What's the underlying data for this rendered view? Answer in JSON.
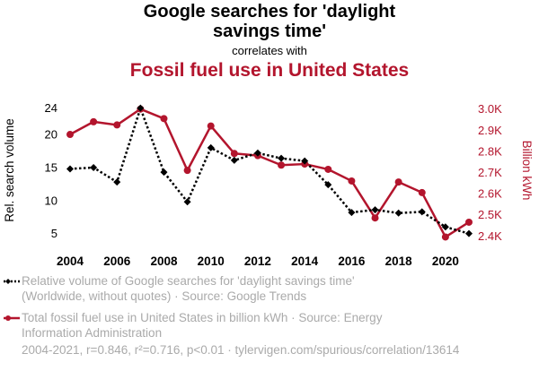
{
  "header": {
    "title_line1": "Google searches for 'daylight",
    "title_line2": "savings time'",
    "correlates": "correlates with",
    "subtitle": "Fossil fuel use in United States"
  },
  "colors": {
    "series1": "#000000",
    "series2": "#b3152d",
    "muted": "#aaaaaa"
  },
  "chart_data": {
    "type": "line",
    "x": [
      2004,
      2005,
      2006,
      2007,
      2008,
      2009,
      2010,
      2011,
      2012,
      2013,
      2014,
      2015,
      2016,
      2017,
      2018,
      2019,
      2020,
      2021
    ],
    "x_ticks": [
      "2004",
      "2006",
      "2008",
      "2010",
      "2012",
      "2014",
      "2016",
      "2018",
      "2020"
    ],
    "x_tick_values": [
      2004,
      2006,
      2008,
      2010,
      2012,
      2014,
      2016,
      2018,
      2020
    ],
    "left_axis": {
      "label": "Rel. search volume",
      "ticks": [
        "5",
        "10",
        "15",
        "20",
        "24"
      ],
      "tick_values": [
        5,
        10,
        15,
        20,
        24
      ],
      "ylim": [
        4,
        24.5
      ]
    },
    "right_axis": {
      "label": "Billion kWh",
      "ticks": [
        "2.4K",
        "2.5K",
        "2.6K",
        "2.7K",
        "2.8K",
        "2.9K",
        "3.0K"
      ],
      "tick_values": [
        2400,
        2500,
        2600,
        2700,
        2800,
        2900,
        3000
      ],
      "ylim": [
        2380,
        3020
      ]
    },
    "series": [
      {
        "name": "Relative volume of Google searches for 'daylight savings time'",
        "axis": "left",
        "style": "dotted",
        "marker": "diamond",
        "values": [
          14.8,
          15.0,
          12.8,
          24.0,
          14.3,
          9.8,
          18.0,
          16.1,
          17.2,
          16.4,
          16.0,
          12.4,
          8.2,
          8.6,
          8.1,
          8.3,
          6.0,
          5.0
        ]
      },
      {
        "name": "Total fossil fuel use in United States in billion kWh",
        "axis": "right",
        "style": "solid",
        "marker": "circle",
        "values": [
          2880,
          2940,
          2925,
          3000,
          2955,
          2710,
          2920,
          2790,
          2780,
          2735,
          2740,
          2715,
          2660,
          2485,
          2655,
          2605,
          2395,
          2465
        ]
      }
    ]
  },
  "legend": {
    "series1_line1": "Relative volume of Google searches for 'daylight savings time'",
    "series1_line2": "(Worldwide, without quotes) · Source: Google Trends",
    "series2_line1": "Total fossil fuel use in United States in billion kWh · Source: Energy",
    "series2_line2": "Information Administration"
  },
  "footer": "2004-2021, r=0.846, r²=0.716, p<0.01 · tylervigen.com/spurious/correlation/13614"
}
